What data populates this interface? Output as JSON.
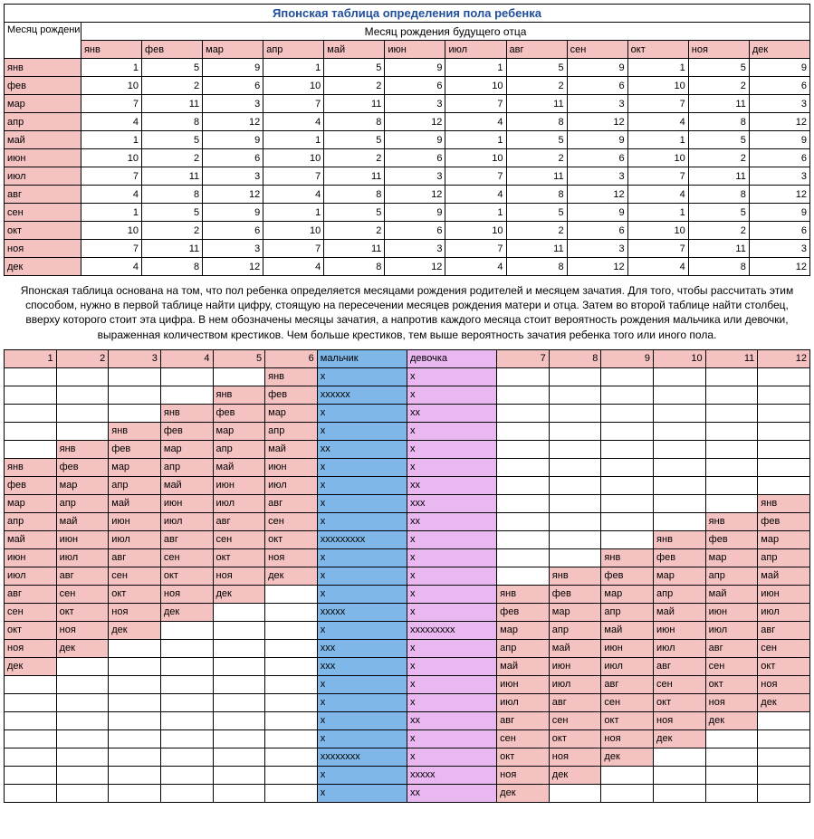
{
  "title": "Японская таблица определения пола ребенка",
  "header_mother": "Месяц рождения будущей матери",
  "header_father": "Месяц рождения будущего отца",
  "months": [
    "янв",
    "фев",
    "мар",
    "апр",
    "май",
    "июн",
    "июл",
    "авг",
    "сен",
    "окт",
    "ноя",
    "дек"
  ],
  "table1_rows": [
    {
      "m": "янв",
      "v": [
        1,
        5,
        9,
        1,
        5,
        9,
        1,
        5,
        9,
        1,
        5,
        9
      ]
    },
    {
      "m": "фев",
      "v": [
        10,
        2,
        6,
        10,
        2,
        6,
        10,
        2,
        6,
        10,
        2,
        6
      ]
    },
    {
      "m": "мар",
      "v": [
        7,
        11,
        3,
        7,
        11,
        3,
        7,
        11,
        3,
        7,
        11,
        3
      ]
    },
    {
      "m": "апр",
      "v": [
        4,
        8,
        12,
        4,
        8,
        12,
        4,
        8,
        12,
        4,
        8,
        12
      ]
    },
    {
      "m": "май",
      "v": [
        1,
        5,
        9,
        1,
        5,
        9,
        1,
        5,
        9,
        1,
        5,
        9
      ]
    },
    {
      "m": "июн",
      "v": [
        10,
        2,
        6,
        10,
        2,
        6,
        10,
        2,
        6,
        10,
        2,
        6
      ]
    },
    {
      "m": "июл",
      "v": [
        7,
        11,
        3,
        7,
        11,
        3,
        7,
        11,
        3,
        7,
        11,
        3
      ]
    },
    {
      "m": "авг",
      "v": [
        4,
        8,
        12,
        4,
        8,
        12,
        4,
        8,
        12,
        4,
        8,
        12
      ]
    },
    {
      "m": "сен",
      "v": [
        1,
        5,
        9,
        1,
        5,
        9,
        1,
        5,
        9,
        1,
        5,
        9
      ]
    },
    {
      "m": "окт",
      "v": [
        10,
        2,
        6,
        10,
        2,
        6,
        10,
        2,
        6,
        10,
        2,
        6
      ]
    },
    {
      "m": "ноя",
      "v": [
        7,
        11,
        3,
        7,
        11,
        3,
        7,
        11,
        3,
        7,
        11,
        3
      ]
    },
    {
      "m": "дек",
      "v": [
        4,
        8,
        12,
        4,
        8,
        12,
        4,
        8,
        12,
        4,
        8,
        12
      ]
    }
  ],
  "description": "Японская таблица основана на том, что пол ребенка определяется месяцами рождения родителей и месяцем зачатия. Для того, чтобы рассчитать этим способом, нужно в первой таблице найти цифру, стоящую на пересечении месяцев рождения матери и отца. Затем во второй таблице найти столбец, вверху которого стоит эта цифра. В нем обозначены месяцы зачатия, а напротив каждого месяца стоит вероятность рождения мальчика или девочки, выраженная количеством крестиков. Чем больше крестиков, тем выше вероятность зачатия ребенка того или иного пола.",
  "t2_header_nums_left": [
    1,
    2,
    3,
    4,
    5,
    6
  ],
  "t2_header_boy": "мальчик",
  "t2_header_girl": "девочка",
  "t2_header_nums_right": [
    7,
    8,
    9,
    10,
    11,
    12
  ],
  "t2_rows": [
    {
      "left": [
        "",
        "",
        "",
        "",
        "",
        "янв"
      ],
      "boy": "х",
      "girl": "х",
      "right": [
        "",
        "",
        "",
        "",
        "",
        ""
      ]
    },
    {
      "left": [
        "",
        "",
        "",
        "",
        "янв",
        "фев"
      ],
      "boy": "хххххх",
      "girl": "х",
      "right": [
        "",
        "",
        "",
        "",
        "",
        ""
      ]
    },
    {
      "left": [
        "",
        "",
        "",
        "янв",
        "фев",
        "мар"
      ],
      "boy": "х",
      "girl": "хх",
      "right": [
        "",
        "",
        "",
        "",
        "",
        ""
      ]
    },
    {
      "left": [
        "",
        "",
        "янв",
        "фев",
        "мар",
        "апр"
      ],
      "boy": "х",
      "girl": "х",
      "right": [
        "",
        "",
        "",
        "",
        "",
        ""
      ]
    },
    {
      "left": [
        "",
        "янв",
        "фев",
        "мар",
        "апр",
        "май"
      ],
      "boy": "хх",
      "girl": "х",
      "right": [
        "",
        "",
        "",
        "",
        "",
        ""
      ]
    },
    {
      "left": [
        "янв",
        "фев",
        "мар",
        "апр",
        "май",
        "июн"
      ],
      "boy": "х",
      "girl": "х",
      "right": [
        "",
        "",
        "",
        "",
        "",
        ""
      ]
    },
    {
      "left": [
        "фев",
        "мар",
        "апр",
        "май",
        "июн",
        "июл"
      ],
      "boy": "х",
      "girl": "хх",
      "right": [
        "",
        "",
        "",
        "",
        "",
        ""
      ]
    },
    {
      "left": [
        "мар",
        "апр",
        "май",
        "июн",
        "июл",
        "авг"
      ],
      "boy": "х",
      "girl": "ххх",
      "right": [
        "",
        "",
        "",
        "",
        "",
        "янв"
      ]
    },
    {
      "left": [
        "апр",
        "май",
        "июн",
        "июл",
        "авг",
        "сен"
      ],
      "boy": "х",
      "girl": "хх",
      "right": [
        "",
        "",
        "",
        "",
        "янв",
        "фев"
      ]
    },
    {
      "left": [
        "май",
        "июн",
        "июл",
        "авг",
        "сен",
        "окт"
      ],
      "boy": "ххххххххх",
      "girl": "х",
      "right": [
        "",
        "",
        "",
        "янв",
        "фев",
        "мар"
      ]
    },
    {
      "left": [
        "июн",
        "июл",
        "авг",
        "сен",
        "окт",
        "ноя"
      ],
      "boy": "х",
      "girl": "х",
      "right": [
        "",
        "",
        "янв",
        "фев",
        "мар",
        "апр"
      ]
    },
    {
      "left": [
        "июл",
        "авг",
        "сен",
        "окт",
        "ноя",
        "дек"
      ],
      "boy": "х",
      "girl": "х",
      "right": [
        "",
        "янв",
        "фев",
        "мар",
        "апр",
        "май"
      ]
    },
    {
      "left": [
        "авг",
        "сен",
        "окт",
        "ноя",
        "дек",
        ""
      ],
      "boy": "х",
      "girl": "х",
      "right": [
        "янв",
        "фев",
        "мар",
        "апр",
        "май",
        "июн"
      ]
    },
    {
      "left": [
        "сен",
        "окт",
        "ноя",
        "дек",
        "",
        ""
      ],
      "boy": "ххххх",
      "girl": "х",
      "right": [
        "фев",
        "мар",
        "апр",
        "май",
        "июн",
        "июл"
      ]
    },
    {
      "left": [
        "окт",
        "ноя",
        "дек",
        "",
        "",
        ""
      ],
      "boy": "х",
      "girl": "ххххххххх",
      "right": [
        "мар",
        "апр",
        "май",
        "июн",
        "июл",
        "авг"
      ]
    },
    {
      "left": [
        "ноя",
        "дек",
        "",
        "",
        "",
        ""
      ],
      "boy": "ххх",
      "girl": "х",
      "right": [
        "апр",
        "май",
        "июн",
        "июл",
        "авг",
        "сен"
      ]
    },
    {
      "left": [
        "дек",
        "",
        "",
        "",
        "",
        ""
      ],
      "boy": "ххх",
      "girl": "х",
      "right": [
        "май",
        "июн",
        "июл",
        "авг",
        "сен",
        "окт"
      ]
    },
    {
      "left": [
        "",
        "",
        "",
        "",
        "",
        ""
      ],
      "boy": "х",
      "girl": "х",
      "right": [
        "июн",
        "июл",
        "авг",
        "сен",
        "окт",
        "ноя"
      ]
    },
    {
      "left": [
        "",
        "",
        "",
        "",
        "",
        ""
      ],
      "boy": "х",
      "girl": "х",
      "right": [
        "июл",
        "авг",
        "сен",
        "окт",
        "ноя",
        "дек"
      ]
    },
    {
      "left": [
        "",
        "",
        "",
        "",
        "",
        ""
      ],
      "boy": "х",
      "girl": "хх",
      "right": [
        "авг",
        "сен",
        "окт",
        "ноя",
        "дек",
        ""
      ]
    },
    {
      "left": [
        "",
        "",
        "",
        "",
        "",
        ""
      ],
      "boy": "х",
      "girl": "х",
      "right": [
        "сен",
        "окт",
        "ноя",
        "дек",
        "",
        ""
      ]
    },
    {
      "left": [
        "",
        "",
        "",
        "",
        "",
        ""
      ],
      "boy": "хххххххх",
      "girl": "х",
      "right": [
        "окт",
        "ноя",
        "дек",
        "",
        "",
        ""
      ]
    },
    {
      "left": [
        "",
        "",
        "",
        "",
        "",
        ""
      ],
      "boy": "х",
      "girl": "ххххх",
      "right": [
        "ноя",
        "дек",
        "",
        "",
        "",
        ""
      ]
    },
    {
      "left": [
        "",
        "",
        "",
        "",
        "",
        ""
      ],
      "boy": "х",
      "girl": "хх",
      "right": [
        "дек",
        "",
        "",
        "",
        "",
        ""
      ]
    }
  ],
  "colors": {
    "pink": "#f5c2c2",
    "blue": "#7fb8e8",
    "violet": "#e9b8f0",
    "title": "#1f4e9c"
  }
}
